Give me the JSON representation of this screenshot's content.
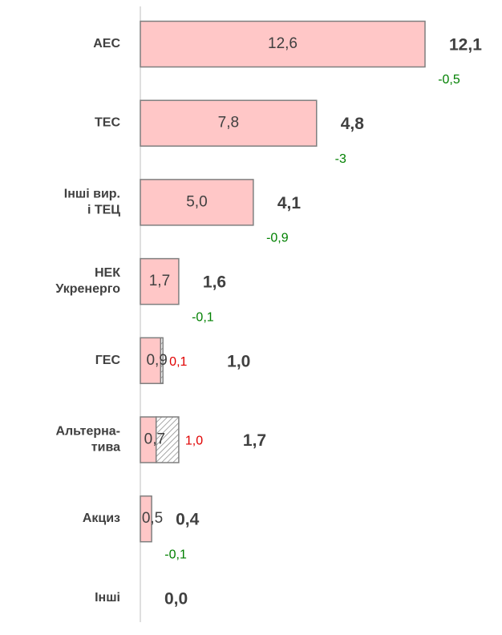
{
  "chart_data": {
    "type": "bar",
    "categories": [
      "АЕС",
      "ТЕС",
      "Інші вир.\nі ТЕЦ",
      "НЕК\nУкренерго",
      "ГЕС",
      "Альтерна-\nтива",
      "Акциз",
      "Інші"
    ],
    "values": [
      12.6,
      7.8,
      5.0,
      1.7,
      0.9,
      0.7,
      0.5,
      0
    ],
    "value_labels": [
      "12,6",
      "7,8",
      "5,0",
      "1,7",
      "0,9",
      "0,7",
      "0,5",
      null
    ],
    "changes": [
      -0.5,
      -3,
      -0.9,
      -0.1,
      0.1,
      1.0,
      -0.1,
      null
    ],
    "change_labels": [
      "-0,5",
      "-3",
      "-0,9",
      "-0,1",
      "0,1",
      "1,0",
      "-0,1",
      null
    ],
    "totals": [
      12.1,
      4.8,
      4.1,
      1.6,
      1.0,
      1.7,
      0.4,
      0.0
    ],
    "total_labels": [
      "12,1",
      "4,8",
      "4,1",
      "1,6",
      "1,0",
      "1,7",
      "0,4",
      "0,0"
    ],
    "color": "#ffc7c7",
    "decrease_color": "#008000",
    "increase_color": "#e00000"
  }
}
